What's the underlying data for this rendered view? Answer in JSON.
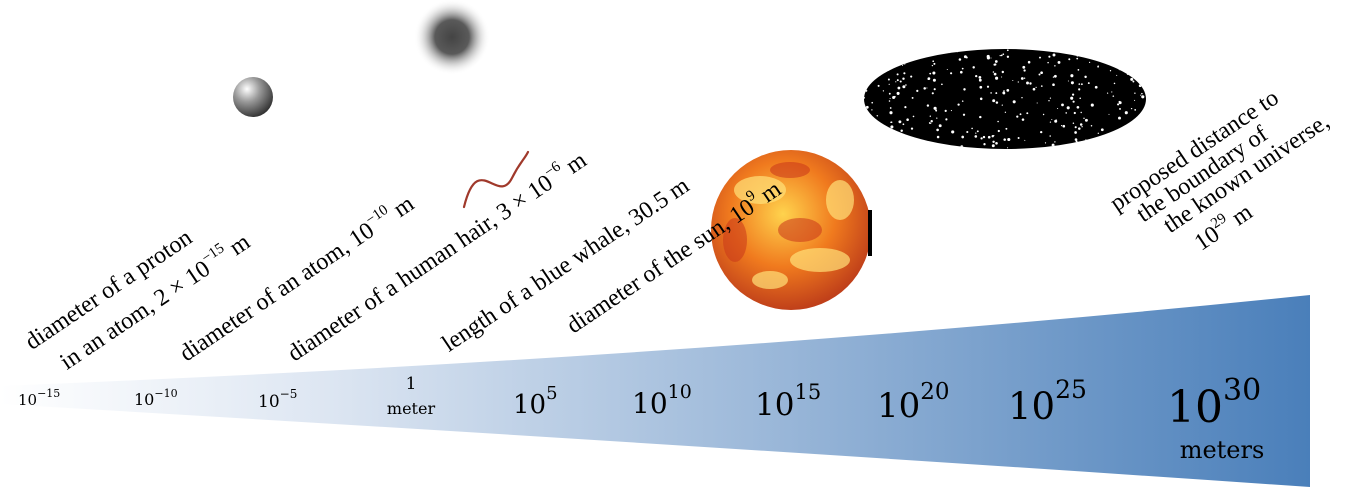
{
  "scale_ticks": [
    {
      "base": "10",
      "exp": "−15",
      "label": ""
    },
    {
      "base": "10",
      "exp": "−10",
      "label": ""
    },
    {
      "base": "10",
      "exp": "−5",
      "label": ""
    },
    {
      "base": "1",
      "exp": "",
      "label": "meter"
    },
    {
      "base": "10",
      "exp": "5",
      "label": ""
    },
    {
      "base": "10",
      "exp": "10",
      "label": ""
    },
    {
      "base": "10",
      "exp": "15",
      "label": ""
    },
    {
      "base": "10",
      "exp": "20",
      "label": ""
    },
    {
      "base": "10",
      "exp": "25",
      "label": ""
    },
    {
      "base": "10",
      "exp": "30",
      "label": "meters"
    }
  ],
  "captions": {
    "proton_line1": "diameter of a proton",
    "proton_line2_pre": "in an atom, 2 × 10",
    "proton_line2_exp": "−15",
    "proton_line2_post": " m",
    "atom_pre": "diameter of an atom, 10",
    "atom_exp": "−10",
    "atom_post": " m",
    "hair_pre": "diameter of a human hair, 3 × 10",
    "hair_exp": "−6",
    "hair_post": " m",
    "whale": "length of a blue whale, 30.5 m",
    "sun_pre": "diameter of the sun, 10",
    "sun_exp": "9",
    "sun_post": " m",
    "universe_line1": "proposed distance to",
    "universe_line2": "the boundary of",
    "universe_line3": "the known universe,",
    "universe_line4_pre": "10",
    "universe_line4_exp": "29",
    "universe_line4_post": " m"
  },
  "colors": {
    "wedge_start": "#ffffff",
    "wedge_end": "#4a7fba",
    "hair": "#a0392b",
    "sun_center": "#ffd34d",
    "sun_edge": "#c0401a",
    "galaxy": "#000000"
  },
  "icons": [
    "proton-sphere-icon",
    "atom-blur-icon",
    "human-hair-icon",
    "sun-icon",
    "galaxy-icon"
  ]
}
